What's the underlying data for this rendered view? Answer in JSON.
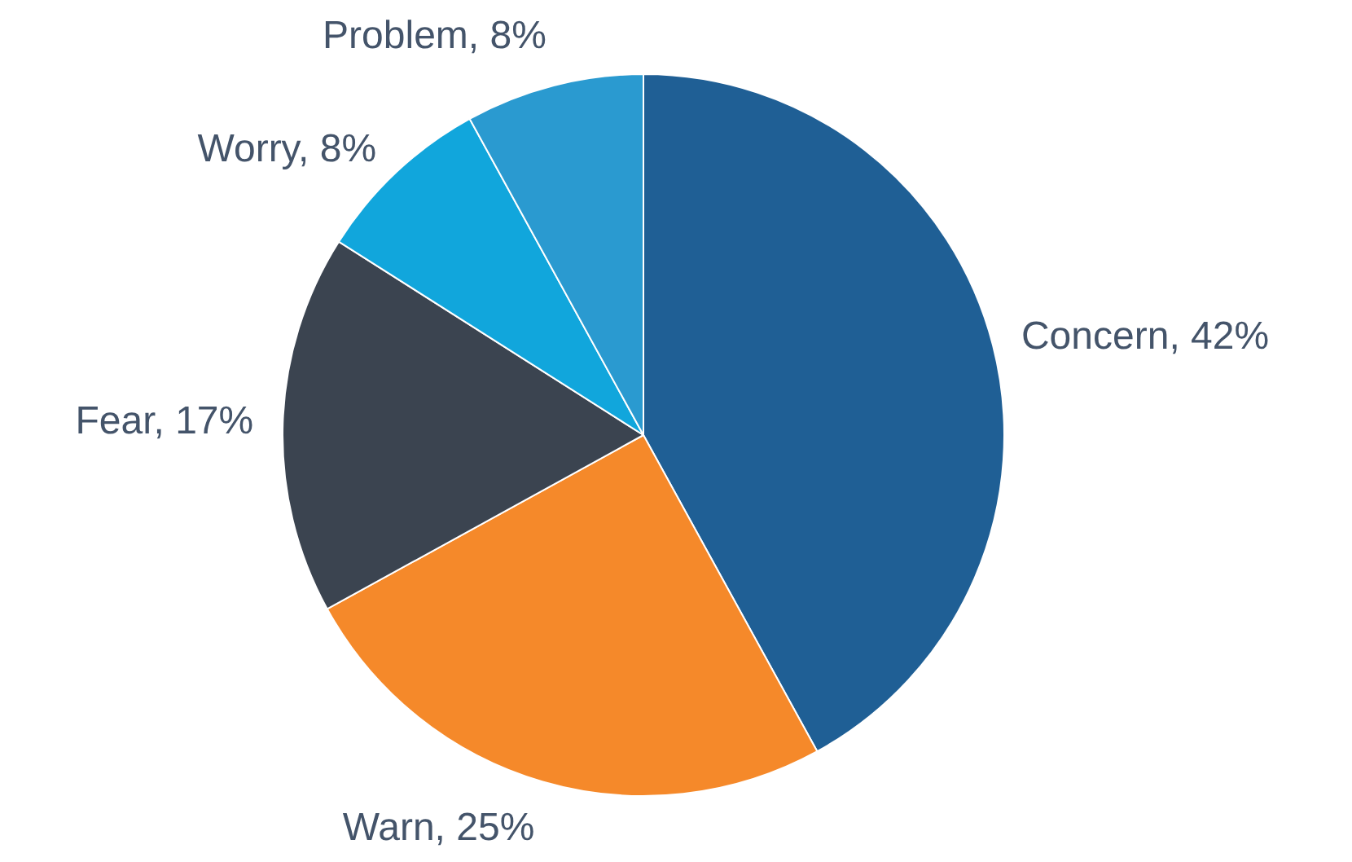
{
  "chart_data": {
    "type": "pie",
    "categories": [
      "Concern",
      "Warn",
      "Fear",
      "Worry",
      "Problem"
    ],
    "values": [
      42,
      25,
      17,
      8,
      8
    ],
    "colors": [
      "#1f5f95",
      "#f5892a",
      "#3b4450",
      "#11a6dc",
      "#2a9ad0"
    ],
    "value_labels": [
      "42%",
      "25%",
      "17%",
      "8%",
      "8%"
    ],
    "legend": false
  }
}
